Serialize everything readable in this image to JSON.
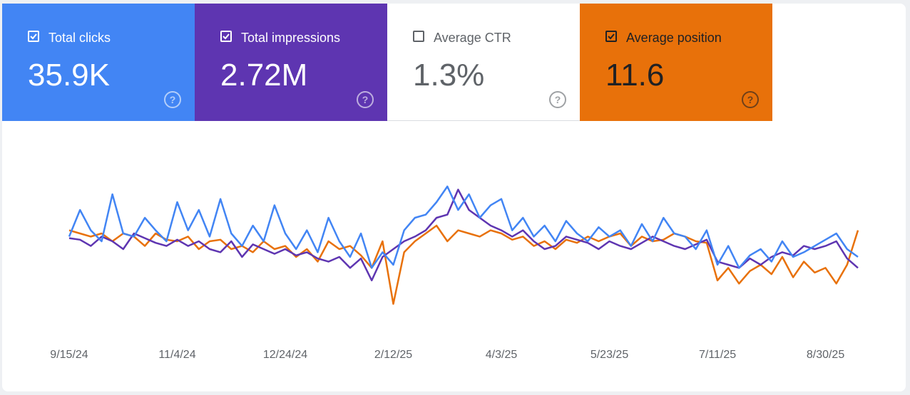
{
  "cards": [
    {
      "label": "Total clicks",
      "value": "35.9K",
      "checked": true,
      "color": "#4285f4",
      "text_color": "#ffffff"
    },
    {
      "label": "Total impressions",
      "value": "2.72M",
      "checked": true,
      "color": "#5e35b1",
      "text_color": "#ffffff"
    },
    {
      "label": "Average CTR",
      "value": "1.3%",
      "checked": false,
      "color": "#ffffff",
      "text_color": "#5f6368"
    },
    {
      "label": "Average position",
      "value": "11.6",
      "checked": true,
      "color": "#e8710a",
      "text_color": "#202124"
    }
  ],
  "chart_data": {
    "type": "line",
    "categories": [
      "9/15/24",
      null,
      null,
      null,
      null,
      null,
      null,
      null,
      null,
      null,
      "11/4/24",
      null,
      null,
      null,
      null,
      null,
      null,
      null,
      null,
      null,
      "12/24/24",
      null,
      null,
      null,
      null,
      null,
      null,
      null,
      null,
      null,
      "2/12/25",
      null,
      null,
      null,
      null,
      null,
      null,
      null,
      null,
      null,
      "4/3/25",
      null,
      null,
      null,
      null,
      null,
      null,
      null,
      null,
      null,
      "5/23/25",
      null,
      null,
      null,
      null,
      null,
      null,
      null,
      null,
      null,
      "7/11/25",
      null,
      null,
      null,
      null,
      null,
      null,
      null,
      null,
      null,
      "8/30/25",
      null,
      null,
      null
    ],
    "ylim": [
      0,
      100
    ],
    "series": [
      {
        "color": "#e8710a",
        "values": [
          62,
          60,
          58,
          60,
          55,
          60,
          58,
          52,
          60,
          56,
          55,
          58,
          50,
          55,
          56,
          50,
          52,
          48,
          55,
          50,
          52,
          45,
          50,
          42,
          55,
          50,
          52,
          46,
          38,
          55,
          15,
          48,
          55,
          60,
          65,
          55,
          62,
          60,
          58,
          62,
          60,
          56,
          58,
          52,
          55,
          50,
          56,
          54,
          58,
          55,
          58,
          60,
          52,
          58,
          55,
          56,
          60,
          58,
          55,
          54,
          30,
          38,
          28,
          36,
          40,
          34,
          45,
          32,
          42,
          35,
          38,
          28,
          40,
          62
        ]
      },
      {
        "color": "#5e35b1",
        "values": [
          57,
          56,
          52,
          58,
          55,
          50,
          60,
          57,
          54,
          52,
          56,
          52,
          55,
          50,
          48,
          55,
          45,
          53,
          50,
          47,
          50,
          46,
          48,
          44,
          42,
          45,
          38,
          44,
          30,
          45,
          50,
          55,
          58,
          62,
          70,
          72,
          88,
          75,
          70,
          65,
          62,
          58,
          62,
          55,
          50,
          52,
          58,
          56,
          54,
          50,
          55,
          52,
          50,
          54,
          58,
          55,
          52,
          50,
          53,
          56,
          42,
          40,
          38,
          44,
          40,
          45,
          48,
          46,
          52,
          50,
          52,
          55,
          44,
          38
        ]
      },
      {
        "color": "#4285f4",
        "values": [
          58,
          75,
          62,
          55,
          85,
          60,
          58,
          70,
          62,
          55,
          80,
          62,
          75,
          58,
          82,
          60,
          52,
          65,
          55,
          78,
          60,
          50,
          62,
          48,
          70,
          55,
          45,
          60,
          38,
          48,
          40,
          62,
          70,
          72,
          80,
          90,
          75,
          85,
          70,
          78,
          82,
          62,
          70,
          58,
          65,
          55,
          68,
          60,
          55,
          64,
          58,
          62,
          52,
          66,
          55,
          70,
          60,
          58,
          50,
          62,
          40,
          52,
          38,
          46,
          50,
          42,
          55,
          45,
          48,
          52,
          56,
          60,
          50,
          45
        ]
      }
    ]
  }
}
